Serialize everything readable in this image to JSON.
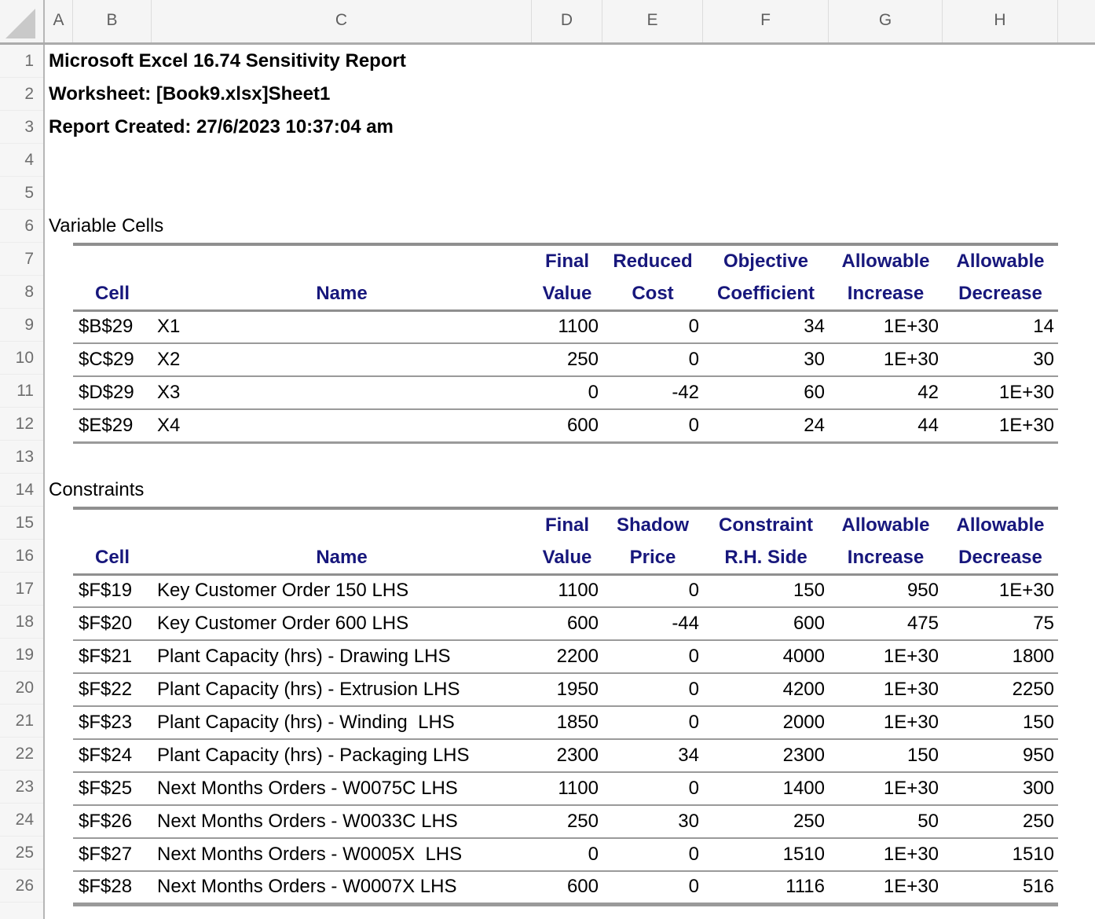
{
  "titles": {
    "line1": "Microsoft Excel 16.74 Sensitivity Report",
    "line2": "Worksheet: [Book9.xlsx]Sheet1",
    "line3": "Report Created: 27/6/2023 10:37:04 am"
  },
  "colors": {
    "header_text_navy": "#17177c",
    "table_rule_gray": "#8f8f8f",
    "frame_background": "#f5f5f5"
  },
  "column_headers": [
    "A",
    "B",
    "C",
    "D",
    "E",
    "F",
    "G",
    "H"
  ],
  "row_numbers": [
    1,
    2,
    3,
    4,
    5,
    6,
    7,
    8,
    9,
    10,
    11,
    12,
    13,
    14,
    15,
    16,
    17,
    18,
    19,
    20,
    21,
    22,
    23,
    24,
    25,
    26
  ],
  "variable_cells": {
    "section_label": "Variable Cells",
    "header_row1": [
      "",
      "",
      "Final",
      "Reduced",
      "Objective",
      "Allowable",
      "Allowable"
    ],
    "header_row2": [
      "Cell",
      "Name",
      "Value",
      "Cost",
      "Coefficient",
      "Increase",
      "Decrease"
    ],
    "fields": [
      "cell",
      "name",
      "final_value",
      "reduced_cost",
      "objective_coefficient",
      "allowable_increase",
      "allowable_decrease"
    ],
    "rows": [
      {
        "cell": "$B$29",
        "name": "X1",
        "final_value": "1100",
        "reduced_cost": "0",
        "objective_coefficient": "34",
        "allowable_increase": "1E+30",
        "allowable_decrease": "14"
      },
      {
        "cell": "$C$29",
        "name": "X2",
        "final_value": "250",
        "reduced_cost": "0",
        "objective_coefficient": "30",
        "allowable_increase": "1E+30",
        "allowable_decrease": "30"
      },
      {
        "cell": "$D$29",
        "name": "X3",
        "final_value": "0",
        "reduced_cost": "-42",
        "objective_coefficient": "60",
        "allowable_increase": "42",
        "allowable_decrease": "1E+30"
      },
      {
        "cell": "$E$29",
        "name": "X4",
        "final_value": "600",
        "reduced_cost": "0",
        "objective_coefficient": "24",
        "allowable_increase": "44",
        "allowable_decrease": "1E+30"
      }
    ]
  },
  "constraints": {
    "section_label": "Constraints",
    "header_row1": [
      "",
      "",
      "Final",
      "Shadow",
      "Constraint",
      "Allowable",
      "Allowable"
    ],
    "header_row2": [
      "Cell",
      "Name",
      "Value",
      "Price",
      "R.H. Side",
      "Increase",
      "Decrease"
    ],
    "fields": [
      "cell",
      "name",
      "final_value",
      "shadow_price",
      "constraint_rh_side",
      "allowable_increase",
      "allowable_decrease"
    ],
    "rows": [
      {
        "cell": "$F$19",
        "name": "Key Customer Order 150 LHS",
        "final_value": "1100",
        "shadow_price": "0",
        "constraint_rh_side": "150",
        "allowable_increase": "950",
        "allowable_decrease": "1E+30"
      },
      {
        "cell": "$F$20",
        "name": "Key Customer Order 600 LHS",
        "final_value": "600",
        "shadow_price": "-44",
        "constraint_rh_side": "600",
        "allowable_increase": "475",
        "allowable_decrease": "75"
      },
      {
        "cell": "$F$21",
        "name": "Plant Capacity (hrs) - Drawing LHS",
        "final_value": "2200",
        "shadow_price": "0",
        "constraint_rh_side": "4000",
        "allowable_increase": "1E+30",
        "allowable_decrease": "1800"
      },
      {
        "cell": "$F$22",
        "name": "Plant Capacity (hrs) - Extrusion LHS",
        "final_value": "1950",
        "shadow_price": "0",
        "constraint_rh_side": "4200",
        "allowable_increase": "1E+30",
        "allowable_decrease": "2250"
      },
      {
        "cell": "$F$23",
        "name": "Plant Capacity (hrs) - Winding  LHS",
        "final_value": "1850",
        "shadow_price": "0",
        "constraint_rh_side": "2000",
        "allowable_increase": "1E+30",
        "allowable_decrease": "150"
      },
      {
        "cell": "$F$24",
        "name": "Plant Capacity (hrs) - Packaging LHS",
        "final_value": "2300",
        "shadow_price": "34",
        "constraint_rh_side": "2300",
        "allowable_increase": "150",
        "allowable_decrease": "950"
      },
      {
        "cell": "$F$25",
        "name": "Next Months Orders - W0075C LHS",
        "final_value": "1100",
        "shadow_price": "0",
        "constraint_rh_side": "1400",
        "allowable_increase": "1E+30",
        "allowable_decrease": "300"
      },
      {
        "cell": "$F$26",
        "name": "Next Months Orders - W0033C LHS",
        "final_value": "250",
        "shadow_price": "30",
        "constraint_rh_side": "250",
        "allowable_increase": "50",
        "allowable_decrease": "250"
      },
      {
        "cell": "$F$27",
        "name": "Next Months Orders - W0005X  LHS",
        "final_value": "0",
        "shadow_price": "0",
        "constraint_rh_side": "1510",
        "allowable_increase": "1E+30",
        "allowable_decrease": "1510"
      },
      {
        "cell": "$F$28",
        "name": "Next Months Orders - W0007X LHS",
        "final_value": "600",
        "shadow_price": "0",
        "constraint_rh_side": "1116",
        "allowable_increase": "1E+30",
        "allowable_decrease": "516"
      }
    ]
  }
}
